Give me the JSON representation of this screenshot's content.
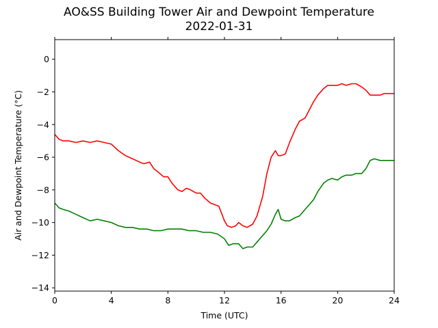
{
  "chart_data": {
    "type": "line",
    "title": "AO&SS Building Tower Air and Dewpoint Temperature",
    "subtitle": "2022-01-31",
    "xlabel": "Time (UTC)",
    "ylabel": "Air and Dewpoint Temperature (°C)",
    "xlim": [
      0,
      24
    ],
    "ylim": [
      -14.2,
      1.2
    ],
    "x_ticks": [
      0,
      4,
      8,
      12,
      16,
      20,
      24
    ],
    "y_ticks": [
      0,
      -2,
      -4,
      -6,
      -8,
      -10,
      -12,
      -14
    ],
    "grid": false,
    "series": [
      {
        "color": "#ff0000",
        "x": [
          0,
          0.3,
          0.6,
          1,
          1.5,
          2,
          2.5,
          3,
          3.5,
          4,
          4.5,
          5,
          5.5,
          6,
          6.3,
          6.7,
          7,
          7.3,
          7.7,
          8,
          8.3,
          8.7,
          9,
          9.3,
          9.6,
          10,
          10.3,
          10.6,
          11,
          11.3,
          11.6,
          12,
          12.2,
          12.5,
          12.8,
          13,
          13.3,
          13.6,
          14,
          14.3,
          14.7,
          15,
          15.3,
          15.6,
          15.8,
          16,
          16.3,
          16.6,
          17,
          17.3,
          17.7,
          18,
          18.3,
          18.6,
          19,
          19.3,
          19.6,
          20,
          20.3,
          20.6,
          21,
          21.3,
          21.7,
          22,
          22.3,
          22.6,
          23,
          23.3,
          23.6,
          24
        ],
        "values": [
          -4.6,
          -4.9,
          -5.0,
          -5.0,
          -5.1,
          -5.0,
          -5.1,
          -5.0,
          -5.1,
          -5.2,
          -5.6,
          -5.9,
          -6.1,
          -6.3,
          -6.4,
          -6.3,
          -6.7,
          -6.9,
          -7.2,
          -7.2,
          -7.6,
          -8.0,
          -8.1,
          -7.9,
          -8.0,
          -8.2,
          -8.2,
          -8.5,
          -8.8,
          -8.9,
          -9.0,
          -9.9,
          -10.2,
          -10.3,
          -10.2,
          -10.0,
          -10.2,
          -10.3,
          -10.1,
          -9.6,
          -8.4,
          -7.0,
          -6.0,
          -5.6,
          -5.9,
          -5.9,
          -5.8,
          -5.1,
          -4.3,
          -3.8,
          -3.6,
          -3.1,
          -2.6,
          -2.2,
          -1.8,
          -1.6,
          -1.6,
          -1.6,
          -1.5,
          -1.6,
          -1.5,
          -1.5,
          -1.7,
          -1.9,
          -2.2,
          -2.2,
          -2.2,
          -2.1,
          -2.1,
          -2.1
        ]
      },
      {
        "color": "#008000",
        "x": [
          0,
          0.3,
          0.6,
          1,
          1.5,
          2,
          2.5,
          3,
          3.5,
          4,
          4.5,
          5,
          5.5,
          6,
          6.5,
          7,
          7.5,
          8,
          8.5,
          9,
          9.5,
          10,
          10.5,
          11,
          11.5,
          12,
          12.3,
          12.6,
          13,
          13.3,
          13.6,
          14,
          14.3,
          14.6,
          15,
          15.3,
          15.6,
          15.8,
          16,
          16.3,
          16.6,
          17,
          17.3,
          17.7,
          18,
          18.3,
          18.6,
          19,
          19.3,
          19.6,
          20,
          20.3,
          20.6,
          21,
          21.3,
          21.7,
          22,
          22.3,
          22.6,
          23,
          23.3,
          23.6,
          24
        ],
        "values": [
          -8.8,
          -9.1,
          -9.2,
          -9.3,
          -9.5,
          -9.7,
          -9.9,
          -9.8,
          -9.9,
          -10.0,
          -10.2,
          -10.3,
          -10.3,
          -10.4,
          -10.4,
          -10.5,
          -10.5,
          -10.4,
          -10.4,
          -10.4,
          -10.5,
          -10.5,
          -10.6,
          -10.6,
          -10.7,
          -11.0,
          -11.4,
          -11.3,
          -11.3,
          -11.6,
          -11.5,
          -11.5,
          -11.2,
          -10.9,
          -10.5,
          -10.1,
          -9.5,
          -9.2,
          -9.8,
          -9.9,
          -9.9,
          -9.7,
          -9.6,
          -9.2,
          -8.9,
          -8.6,
          -8.1,
          -7.6,
          -7.4,
          -7.3,
          -7.4,
          -7.2,
          -7.1,
          -7.1,
          -7.0,
          -7.0,
          -6.7,
          -6.2,
          -6.1,
          -6.2,
          -6.2,
          -6.2,
          -6.2
        ]
      }
    ]
  }
}
